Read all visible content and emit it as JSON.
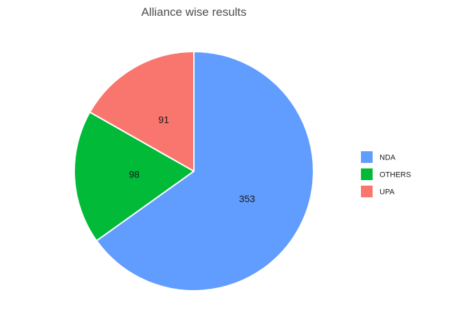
{
  "chart_data": {
    "type": "pie",
    "title": "Alliance wise results",
    "categories": [
      "NDA",
      "OTHERS",
      "UPA"
    ],
    "values": [
      353,
      98,
      91
    ],
    "colors": [
      "#619CFF",
      "#00BA38",
      "#F8766D"
    ],
    "slice_labels": [
      "353",
      "98",
      "91"
    ],
    "legend": {
      "placement": "right",
      "entries": [
        "NDA",
        "OTHERS",
        "UPA"
      ]
    },
    "start_position": "top",
    "direction": "clockwise"
  }
}
